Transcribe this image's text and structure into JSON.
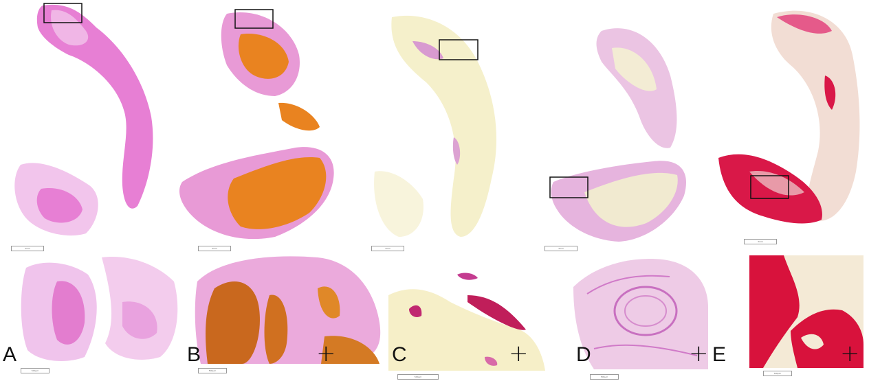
{
  "panels": [
    {
      "label": "A",
      "stain_color": "#e58ad6",
      "dense_color": "#e07ad0",
      "pale_color": "#f0c8ea",
      "scale_overview": "3mm",
      "scale_zoom": "500µm",
      "plus": ""
    },
    {
      "label": "B",
      "stain_color": "#e9a0d8",
      "dense_color": "#e98320",
      "pale_color": "#f0c0e0",
      "scale_overview": "3mm",
      "scale_zoom": "500µm",
      "plus": "+"
    },
    {
      "label": "C",
      "stain_color": "#f3efc4",
      "dense_color": "#d8a6d0",
      "pale_color": "#fbf8e4",
      "scale_overview": "3mm",
      "scale_zoom": "500µm",
      "plus": "+"
    },
    {
      "label": "D",
      "stain_color": "#e8bfe0",
      "dense_color": "#d38fd0",
      "pale_color": "#f4eed6",
      "scale_overview": "3mm",
      "scale_zoom": "500µm",
      "plus": "+"
    },
    {
      "label": "E",
      "stain_color": "#f2ddd6",
      "dense_color": "#d91848",
      "pale_color": "#f5ecd6",
      "scale_overview": "3mm",
      "scale_zoom": "500µm",
      "plus": "+"
    }
  ]
}
